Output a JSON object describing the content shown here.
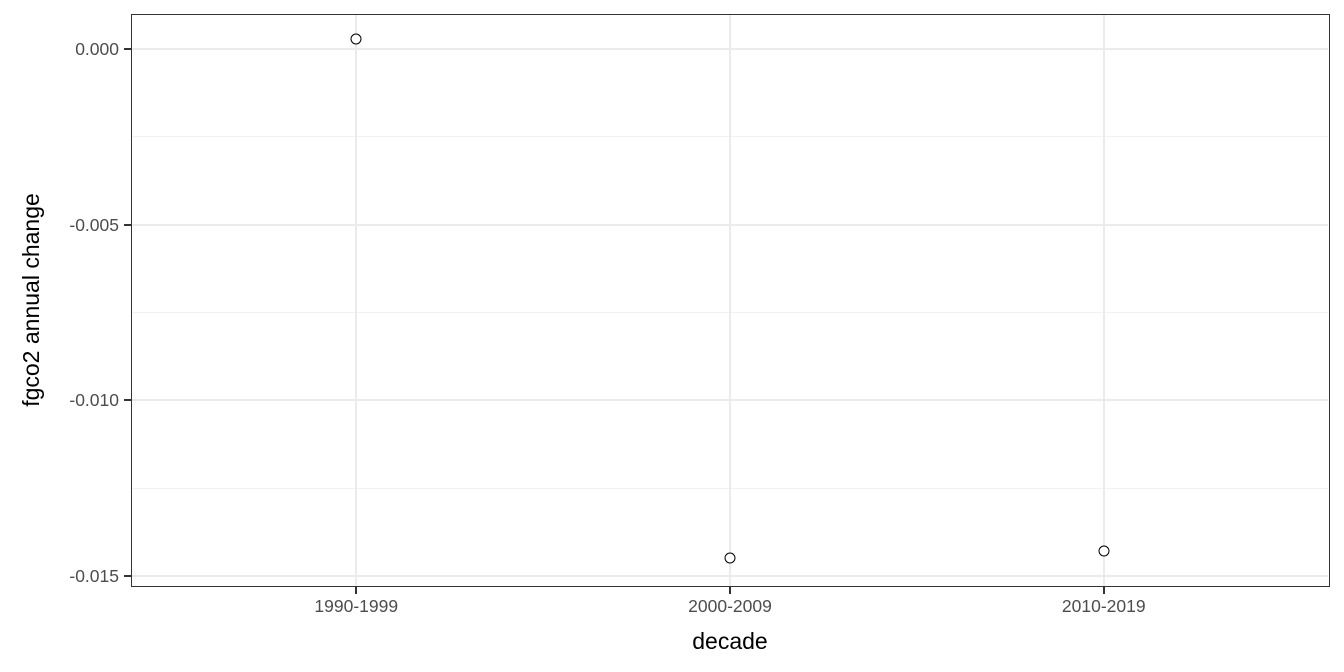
{
  "chart_data": {
    "type": "scatter",
    "title": "",
    "xlabel": "decade",
    "ylabel": "fgco2 annual change",
    "categories": [
      "1990-1999",
      "2000-2009",
      "2010-2019"
    ],
    "values": [
      0.0003,
      -0.0145,
      -0.0143
    ],
    "ylim": [
      -0.01527,
      0.00097
    ],
    "y_major_ticks": [
      0,
      -0.005,
      -0.01,
      -0.015
    ],
    "y_tick_labels": [
      "0.000",
      "-0.005",
      "-0.010",
      "-0.015"
    ],
    "y_minor_ticks": [
      -0.0025,
      -0.0075,
      -0.0125
    ],
    "x_axis_type": "discrete",
    "grid": "horizontal major+minor, vertical major only",
    "legend": "none",
    "marker": {
      "shape": "open-circle",
      "stroke": "#000000",
      "fill": "#ffffff"
    }
  },
  "style": {
    "background": "#ffffff",
    "panel_background": "#ffffff",
    "panel_border": "#333333",
    "grid_major": "#ebebeb",
    "grid_minor": "#f2f2f2",
    "tick_mark": "#333333",
    "tick_label_color": "#4d4d4d",
    "axis_title_color": "#000000"
  }
}
